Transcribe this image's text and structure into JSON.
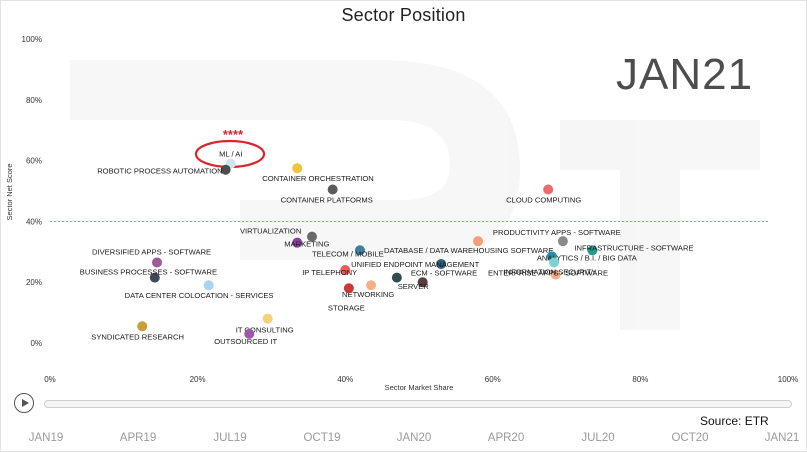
{
  "header": {
    "title": "Sector Position",
    "period": "JAN21"
  },
  "source": "Source: ETR",
  "highlight": {
    "stars": "****",
    "ring_color": "#d9262c"
  },
  "player": {
    "timeline": [
      "JAN19",
      "APR19",
      "JUL19",
      "OCT19",
      "JAN20",
      "APR20",
      "JUL20",
      "OCT20",
      "JAN21"
    ]
  },
  "chart_data": {
    "type": "scatter",
    "title": "Sector Position",
    "xlabel": "Sector Market Share",
    "ylabel": "Sector Net Score",
    "xlim": [
      0,
      100
    ],
    "ylim": [
      -5,
      100
    ],
    "x_ticks": [
      "0%",
      "20%",
      "40%",
      "60%",
      "80%",
      "100%"
    ],
    "y_ticks": [
      "0%",
      "20%",
      "40%",
      "60%",
      "80%",
      "100%"
    ],
    "reference_line": {
      "y": 40,
      "color": "#e05a5a",
      "style": "dotted"
    },
    "grid": false,
    "points": [
      {
        "label": "ML / AI",
        "x": 24.5,
        "y": 59,
        "color": "#cfe5f0"
      },
      {
        "label": "ROBOTIC PROCESS AUTOMATION",
        "x": 23.8,
        "y": 57,
        "color": "#4e4e4e"
      },
      {
        "label": "CONTAINER ORCHESTRATION",
        "x": 33.5,
        "y": 57.5,
        "color": "#f2c23a"
      },
      {
        "label": "CONTAINER PLATFORMS",
        "x": 38.3,
        "y": 50.5,
        "color": "#5b5b5b"
      },
      {
        "label": "CLOUD COMPUTING",
        "x": 67.5,
        "y": 50.5,
        "color": "#ef6b6b"
      },
      {
        "label": "VIRTUALIZATION",
        "x": 35.5,
        "y": 35,
        "color": "#6b6b6b"
      },
      {
        "label": "MARKETING",
        "x": 33.5,
        "y": 33,
        "color": "#8a3fa0"
      },
      {
        "label": "PRODUCTIVITY APPS - SOFTWARE",
        "x": 69.5,
        "y": 33.5,
        "color": "#8a8a8a"
      },
      {
        "label": "INFRASTRUCTURE - SOFTWARE",
        "x": 73.5,
        "y": 30.5,
        "color": "#1f9e8e"
      },
      {
        "label": "DATABASE / DATA WAREHOUSING SOFTWARE",
        "x": 58,
        "y": 33.5,
        "color": "#f5a07a"
      },
      {
        "label": "UNIFIED ENDPOINT MANAGEMENT",
        "x": 53,
        "y": 26,
        "color": "#2f5f7a"
      },
      {
        "label": "ANALYTICS / B.I. / BIG DATA",
        "x": 68,
        "y": 28.5,
        "color": "#2a8fa0"
      },
      {
        "label": "INFORMATION SECURITY",
        "x": 68.5,
        "y": 22.5,
        "color": "#f4b28a"
      },
      {
        "label": "ENTERPRISE APPS - SOFTWARE",
        "x": 68.3,
        "y": 26.5,
        "color": "#7fd0d0"
      },
      {
        "label": "DIVERSIFIED APPS - SOFTWARE",
        "x": 14.5,
        "y": 26.5,
        "color": "#a05a9e"
      },
      {
        "label": "BUSINESS PROCESSES - SOFTWARE",
        "x": 14.2,
        "y": 21.5,
        "color": "#3e4a5a"
      },
      {
        "label": "DATA CENTER COLOCATION - SERVICES",
        "x": 21.5,
        "y": 19,
        "color": "#a8d4ec"
      },
      {
        "label": "TELECOM / MOBILE",
        "x": 42,
        "y": 30.5,
        "color": "#3f7fa0"
      },
      {
        "label": "IP TELEPHONY",
        "x": 40,
        "y": 24,
        "color": "#ef5a5a"
      },
      {
        "label": "ECM - SOFTWARE",
        "x": 47,
        "y": 21.5,
        "color": "#2f4f4f"
      },
      {
        "label": "SERVER",
        "x": 50.5,
        "y": 20,
        "color": "#5a3e3e"
      },
      {
        "label": "NETWORKING",
        "x": 43.5,
        "y": 19,
        "color": "#f5b08a"
      },
      {
        "label": "STORAGE",
        "x": 40.5,
        "y": 18,
        "color": "#c63a3a"
      },
      {
        "label": "IT CONSULTING",
        "x": 29.5,
        "y": 8,
        "color": "#f3d27a"
      },
      {
        "label": "OUTSOURCED IT",
        "x": 27,
        "y": 3,
        "color": "#9a5aa8"
      },
      {
        "label": "SYNDICATED RESEARCH",
        "x": 12.5,
        "y": 5.5,
        "color": "#c8a03a"
      }
    ]
  }
}
